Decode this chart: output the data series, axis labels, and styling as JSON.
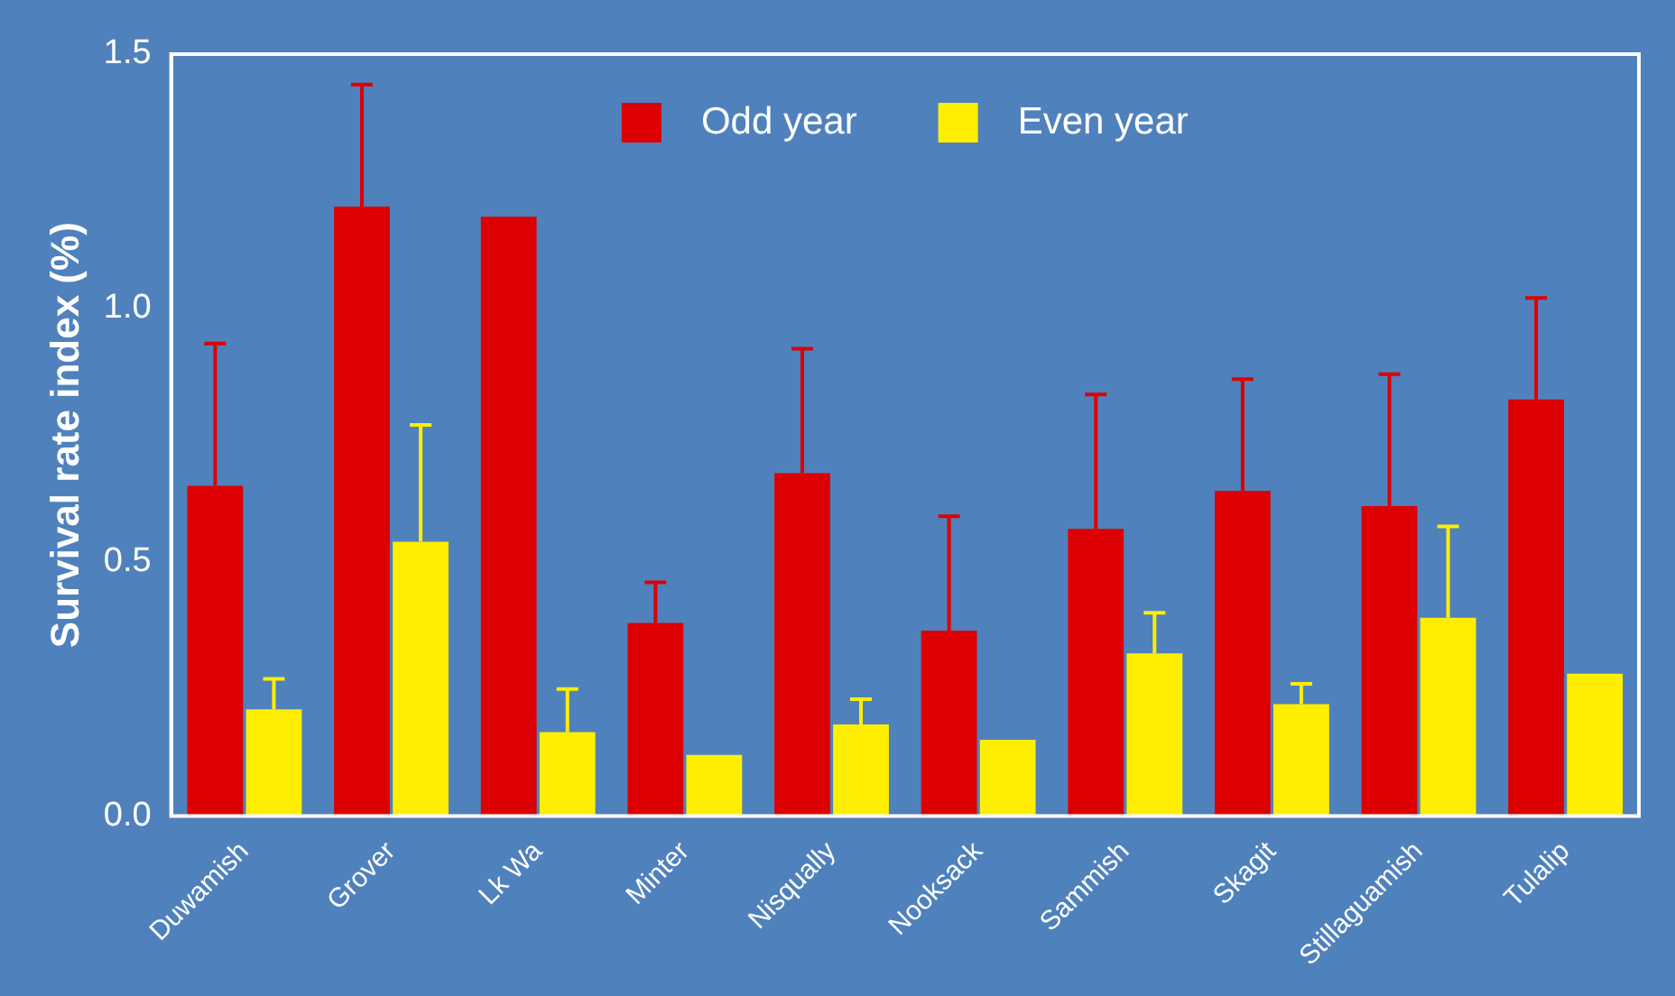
{
  "chart_data": {
    "type": "bar",
    "ylabel": "Survival rate index (%)",
    "categories": [
      "Duwamish",
      "Grover",
      "Lk Wa",
      "Minter",
      "Nisqually",
      "Nooksack",
      "Sammish",
      "Skagit",
      "Stillaguamish",
      "Tulalip"
    ],
    "series": [
      {
        "name": "Odd year",
        "color": "#dd0000",
        "values": [
          0.65,
          1.2,
          1.18,
          0.38,
          0.675,
          0.365,
          0.565,
          0.64,
          0.61,
          0.82
        ],
        "errors": [
          [
            0.65,
            0.93
          ],
          [
            1.2,
            1.44
          ],
          null,
          [
            0.38,
            0.46
          ],
          [
            0.675,
            0.92
          ],
          [
            0.365,
            0.59
          ],
          [
            0.565,
            0.83
          ],
          [
            0.64,
            0.86
          ],
          [
            0.61,
            0.87
          ],
          [
            0.82,
            1.02
          ]
        ]
      },
      {
        "name": "Even year",
        "color": "#ffee00",
        "values": [
          0.21,
          0.54,
          0.165,
          0.12,
          0.18,
          0.15,
          0.32,
          0.22,
          0.39,
          0.28
        ],
        "errors": [
          [
            0.21,
            0.27
          ],
          [
            0.54,
            0.77
          ],
          [
            0.165,
            0.25
          ],
          null,
          [
            0.18,
            0.23
          ],
          null,
          [
            0.32,
            0.4
          ],
          [
            0.22,
            0.26
          ],
          [
            0.39,
            0.57
          ],
          null
        ]
      }
    ],
    "ylim": [
      0,
      1.5
    ],
    "yticks": [
      {
        "value": 0,
        "label": "0.0"
      },
      {
        "value": 0.5,
        "label": "0.5"
      },
      {
        "value": 1,
        "label": "1.0"
      },
      {
        "value": 1.5,
        "label": "1.5"
      }
    ],
    "grid": false,
    "legend": "top"
  }
}
